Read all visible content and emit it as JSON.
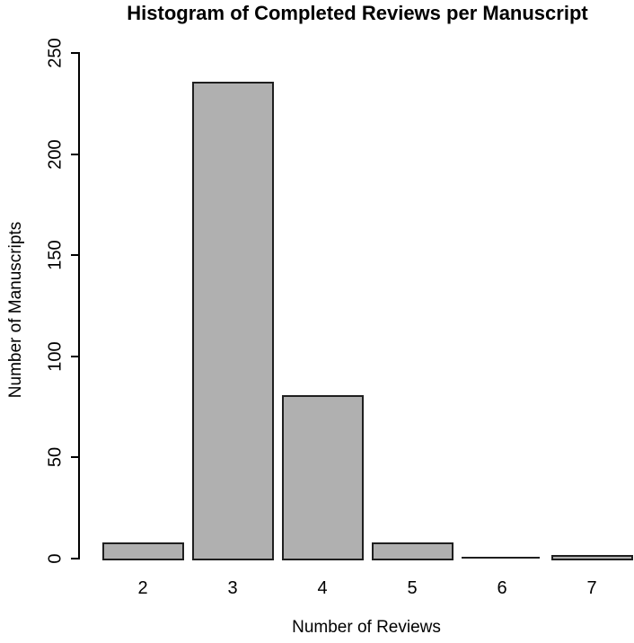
{
  "chart_data": {
    "type": "bar",
    "variant": "histogram",
    "title": "Histogram of Completed Reviews per Manuscript",
    "xlabel": "Number of Reviews",
    "ylabel": "Number of Manuscripts",
    "categories": [
      "2",
      "3",
      "4",
      "5",
      "6",
      "7"
    ],
    "values": [
      7,
      235,
      80,
      7,
      0,
      1
    ],
    "yticks": [
      0,
      50,
      100,
      150,
      200,
      250
    ],
    "ylim": [
      0,
      250
    ],
    "grid": false,
    "legend": null,
    "colors": {
      "bar_fill": "#b0b0b0",
      "bar_border": "#1f1f1f",
      "axis": "#000000",
      "text": "#000000",
      "background": "#ffffff"
    }
  }
}
